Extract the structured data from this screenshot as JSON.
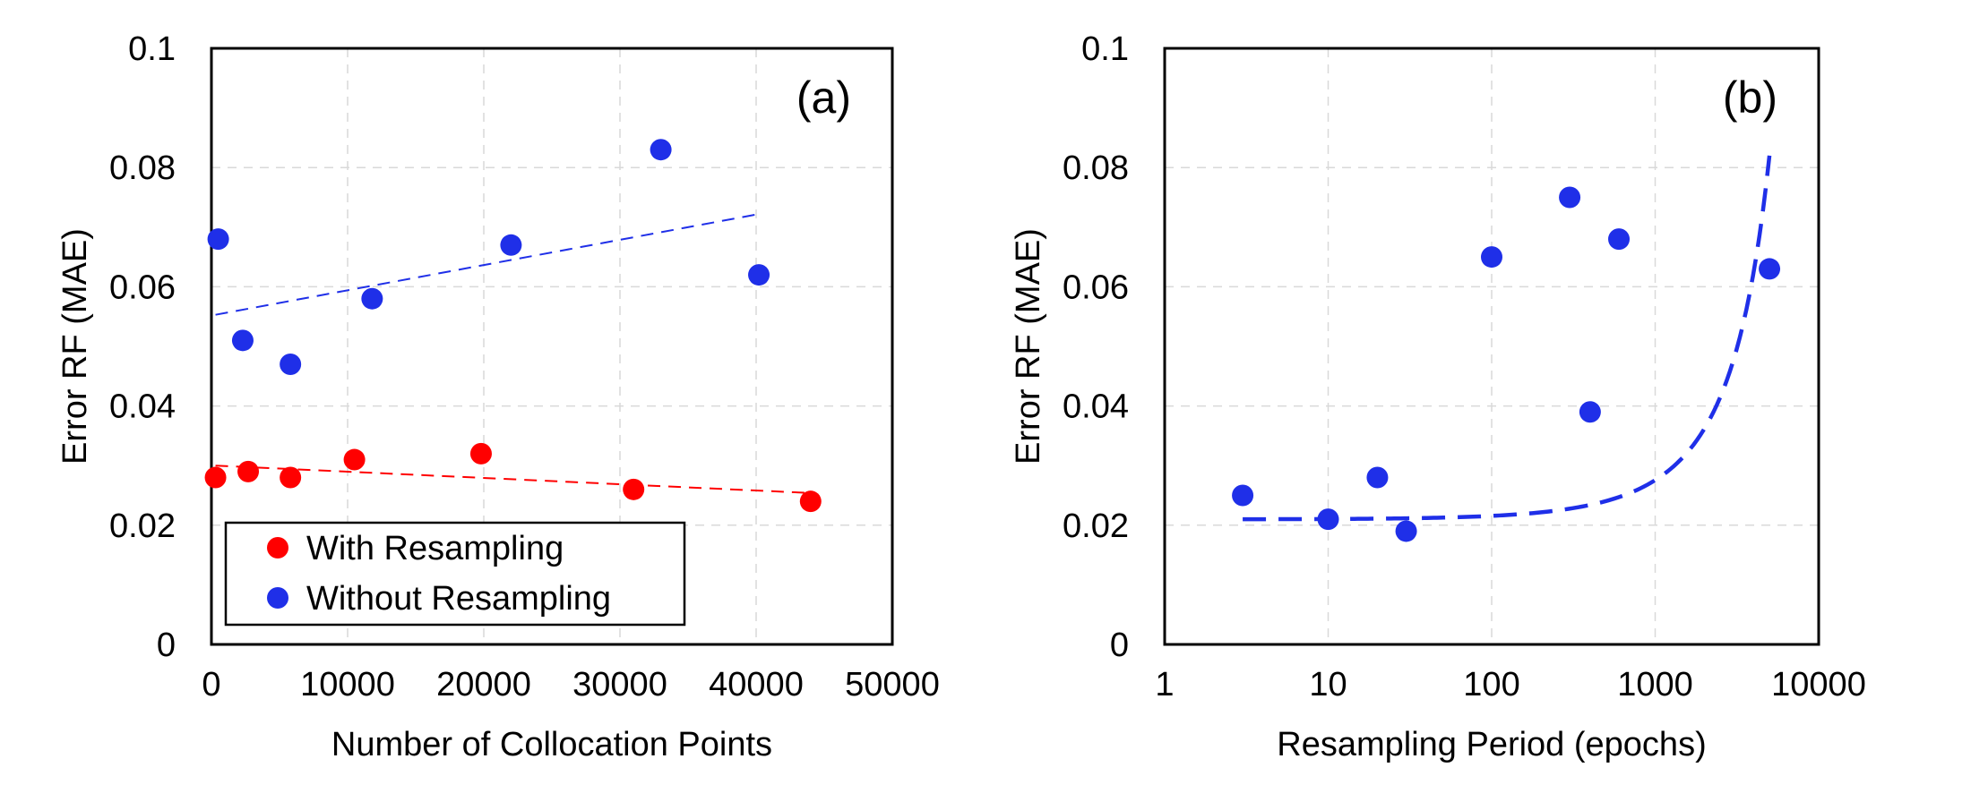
{
  "chart_data": [
    {
      "type": "scatter",
      "panel_label": "(a)",
      "xlabel": "Number of Collocation Points",
      "ylabel": "Error RF (MAE)",
      "xscale": "linear",
      "xlim": [
        0,
        50000
      ],
      "ylim": [
        0,
        0.1
      ],
      "xticks": [
        0,
        10000,
        20000,
        30000,
        40000,
        50000
      ],
      "yticks": [
        0,
        0.02,
        0.04,
        0.06,
        0.08,
        0.1
      ],
      "xtick_labels": [
        "0",
        "10000",
        "20000",
        "30000",
        "40000",
        "50000"
      ],
      "ytick_labels": [
        "0",
        "0.02",
        "0.04",
        "0.06",
        "0.08",
        "0.1"
      ],
      "grid": true,
      "legend_position": "bottom-left",
      "series": [
        {
          "name": "With Resampling",
          "color": "#ff0000",
          "points": [
            [
              300,
              0.028
            ],
            [
              2700,
              0.029
            ],
            [
              5800,
              0.028
            ],
            [
              10500,
              0.031
            ],
            [
              19800,
              0.032
            ],
            [
              31000,
              0.026
            ],
            [
              44000,
              0.024
            ]
          ],
          "trend": {
            "type": "linear",
            "x": [
              300,
              44000
            ],
            "y": [
              0.03,
              0.0254
            ]
          }
        },
        {
          "name": "Without Resampling",
          "color": "#1f2fe8",
          "points": [
            [
              500,
              0.068
            ],
            [
              2300,
              0.051
            ],
            [
              5800,
              0.047
            ],
            [
              11800,
              0.058
            ],
            [
              22000,
              0.067
            ],
            [
              33000,
              0.083
            ],
            [
              40200,
              0.062
            ]
          ],
          "trend": {
            "type": "linear",
            "x": [
              300,
              40200
            ],
            "y": [
              0.0553,
              0.0722
            ]
          }
        }
      ]
    },
    {
      "type": "scatter",
      "panel_label": "(b)",
      "xlabel": "Resampling Period (epochs)",
      "ylabel": "Error RF (MAE)",
      "xscale": "log",
      "xlim": [
        1,
        10000
      ],
      "ylim": [
        0,
        0.1
      ],
      "xticks": [
        1,
        10,
        100,
        1000,
        10000
      ],
      "yticks": [
        0,
        0.02,
        0.04,
        0.06,
        0.08,
        0.1
      ],
      "xtick_labels": [
        "1",
        "10",
        "100",
        "1000",
        "10000"
      ],
      "ytick_labels": [
        "0",
        "0.02",
        "0.04",
        "0.06",
        "0.08",
        "0.1"
      ],
      "grid": true,
      "series": [
        {
          "name": "Resampling Period",
          "color": "#1f2fe8",
          "points": [
            [
              3,
              0.025
            ],
            [
              10,
              0.021
            ],
            [
              20,
              0.028
            ],
            [
              30,
              0.019
            ],
            [
              100,
              0.065
            ],
            [
              300,
              0.075
            ],
            [
              400,
              0.039
            ],
            [
              600,
              0.068
            ],
            [
              5000,
              0.063
            ]
          ],
          "trend": {
            "type": "exponential",
            "x_range": [
              3,
              5000
            ],
            "y_at_start": 0.021,
            "y_at_end": 0.082
          }
        }
      ]
    }
  ]
}
